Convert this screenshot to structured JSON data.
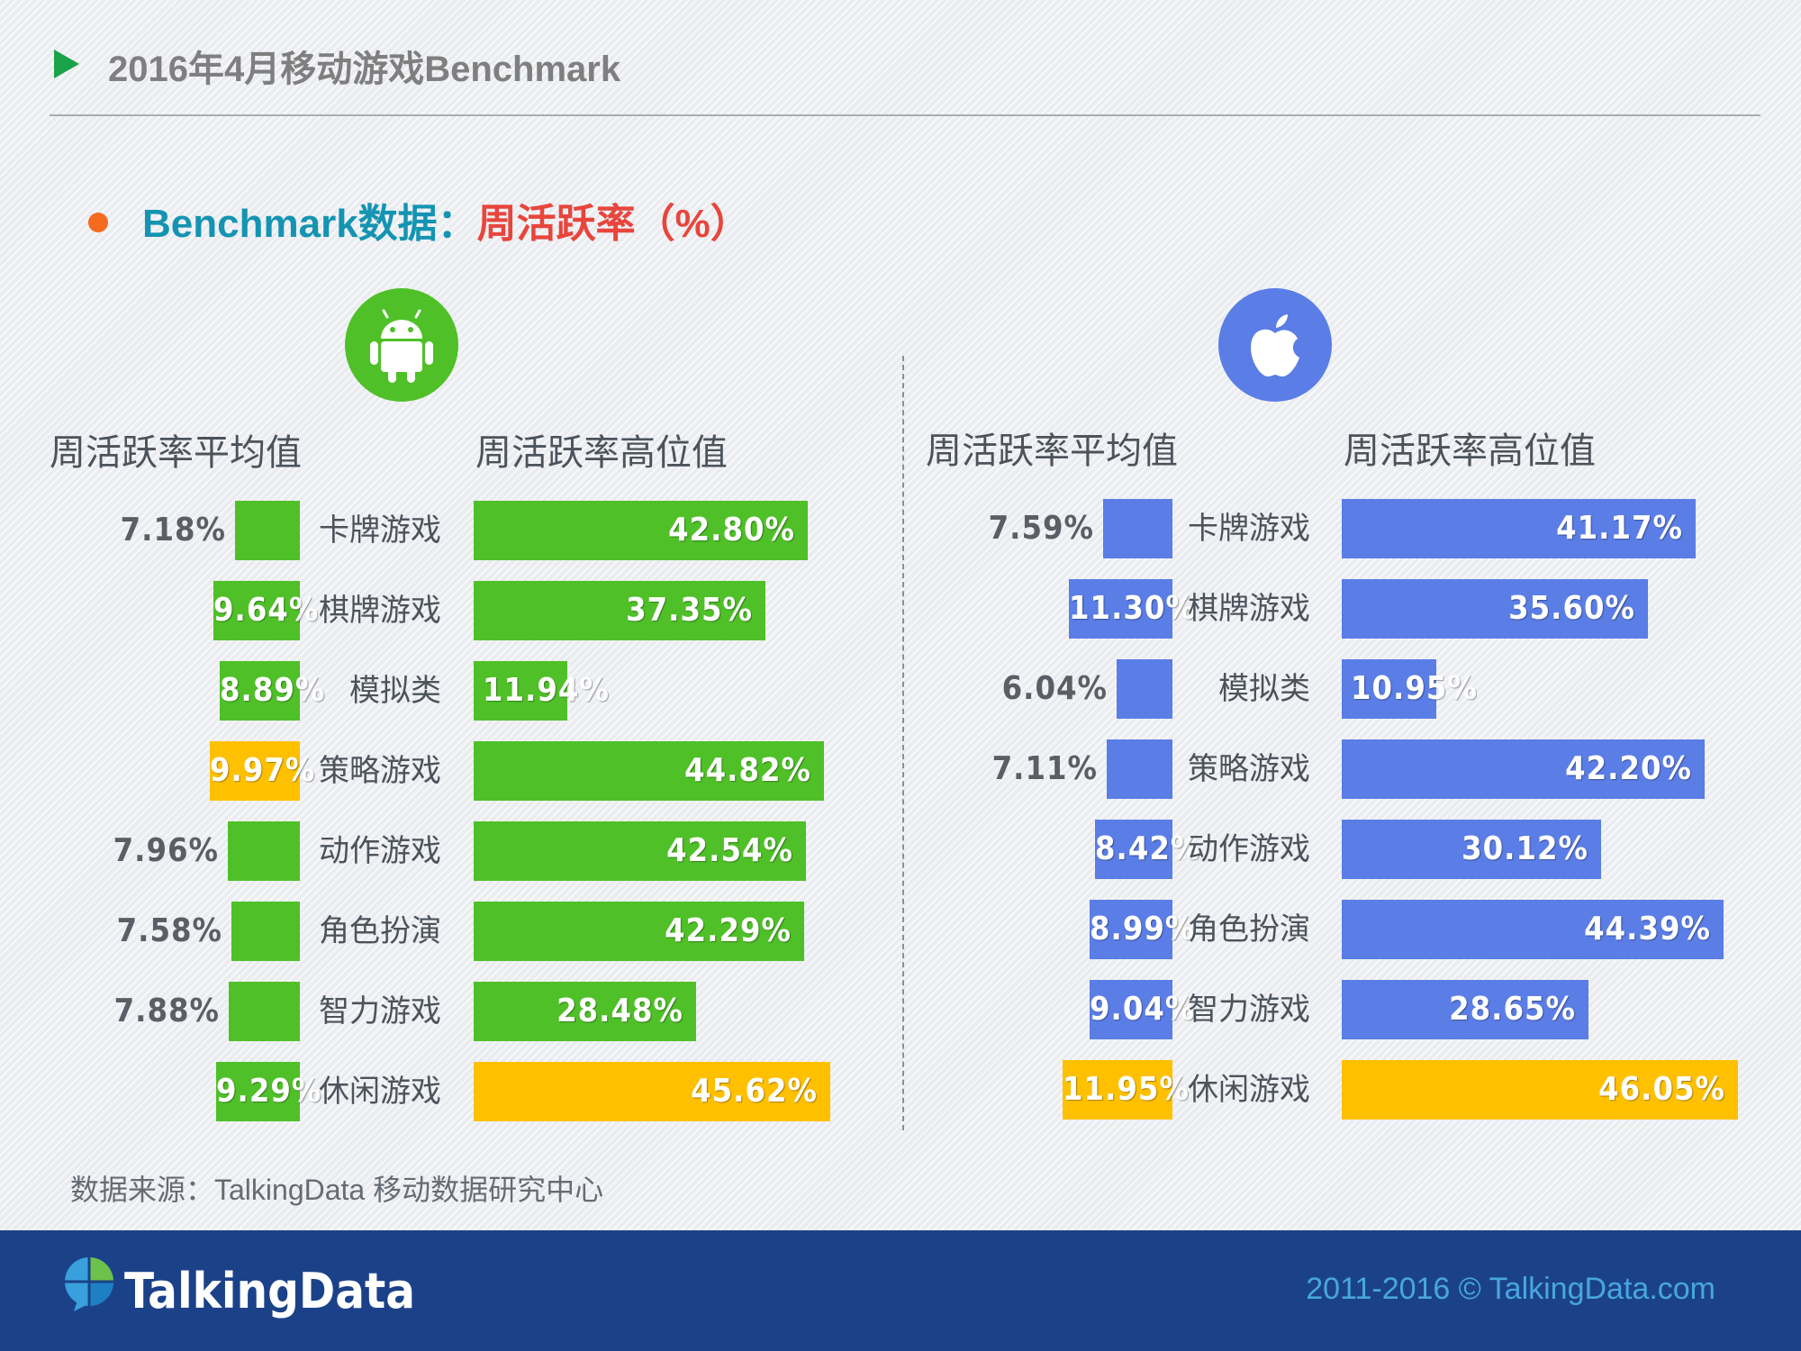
{
  "header": {
    "title": "2016年4月移动游戏Benchmark"
  },
  "section": {
    "label": "Benchmark数据：",
    "metric": "周活跃率（%）"
  },
  "colors": {
    "android_green": "#4fc028",
    "ios_blue": "#5a7de6",
    "highlight_yellow": "#ffc000",
    "title_teal": "#1494b2",
    "metric_red": "#e8453c"
  },
  "icons": {
    "android": "android-icon",
    "apple": "apple-icon"
  },
  "chart_data": [
    {
      "type": "bar",
      "platform": "Android",
      "categories": [
        "卡牌游戏",
        "棋牌游戏",
        "模拟类",
        "策略游戏",
        "动作游戏",
        "角色扮演",
        "智力游戏",
        "休闲游戏"
      ],
      "series": [
        {
          "name": "周活跃率平均值",
          "values": [
            7.18,
            9.64,
            8.89,
            9.97,
            7.96,
            7.58,
            7.88,
            9.29
          ],
          "labels": [
            "7.18%",
            "9.64%",
            "8.89%",
            "9.97%",
            "7.96%",
            "7.58%",
            "7.88%",
            "9.29%"
          ],
          "highlight_index": 3
        },
        {
          "name": "周活跃率高位值",
          "values": [
            42.8,
            37.35,
            11.94,
            44.82,
            42.54,
            42.29,
            28.48,
            45.62
          ],
          "labels": [
            "42.80%",
            "37.35%",
            "11.94%",
            "44.82%",
            "42.54%",
            "42.29%",
            "28.48%",
            "45.62%"
          ],
          "highlight_index": 7
        }
      ]
    },
    {
      "type": "bar",
      "platform": "iOS",
      "categories": [
        "卡牌游戏",
        "棋牌游戏",
        "模拟类",
        "策略游戏",
        "动作游戏",
        "角色扮演",
        "智力游戏",
        "休闲游戏"
      ],
      "series": [
        {
          "name": "周活跃率平均值",
          "values": [
            7.59,
            11.3,
            6.04,
            7.11,
            8.42,
            8.99,
            9.04,
            11.95
          ],
          "labels": [
            "7.59%",
            "11.30%",
            "6.04%",
            "7.11%",
            "8.42%",
            "8.99%",
            "9.04%",
            "11.95%"
          ],
          "highlight_index": 7
        },
        {
          "name": "周活跃率高位值",
          "values": [
            41.17,
            35.6,
            10.95,
            42.2,
            30.12,
            44.39,
            28.65,
            46.05
          ],
          "labels": [
            "41.17%",
            "35.60%",
            "10.95%",
            "42.20%",
            "30.12%",
            "44.39%",
            "28.65%",
            "46.05%"
          ],
          "highlight_index": 7
        }
      ]
    }
  ],
  "source": "数据来源：TalkingData 移动数据研究中心",
  "footer": {
    "brand": "TalkingData",
    "copyright": "2011-2016 © TalkingData.com"
  }
}
